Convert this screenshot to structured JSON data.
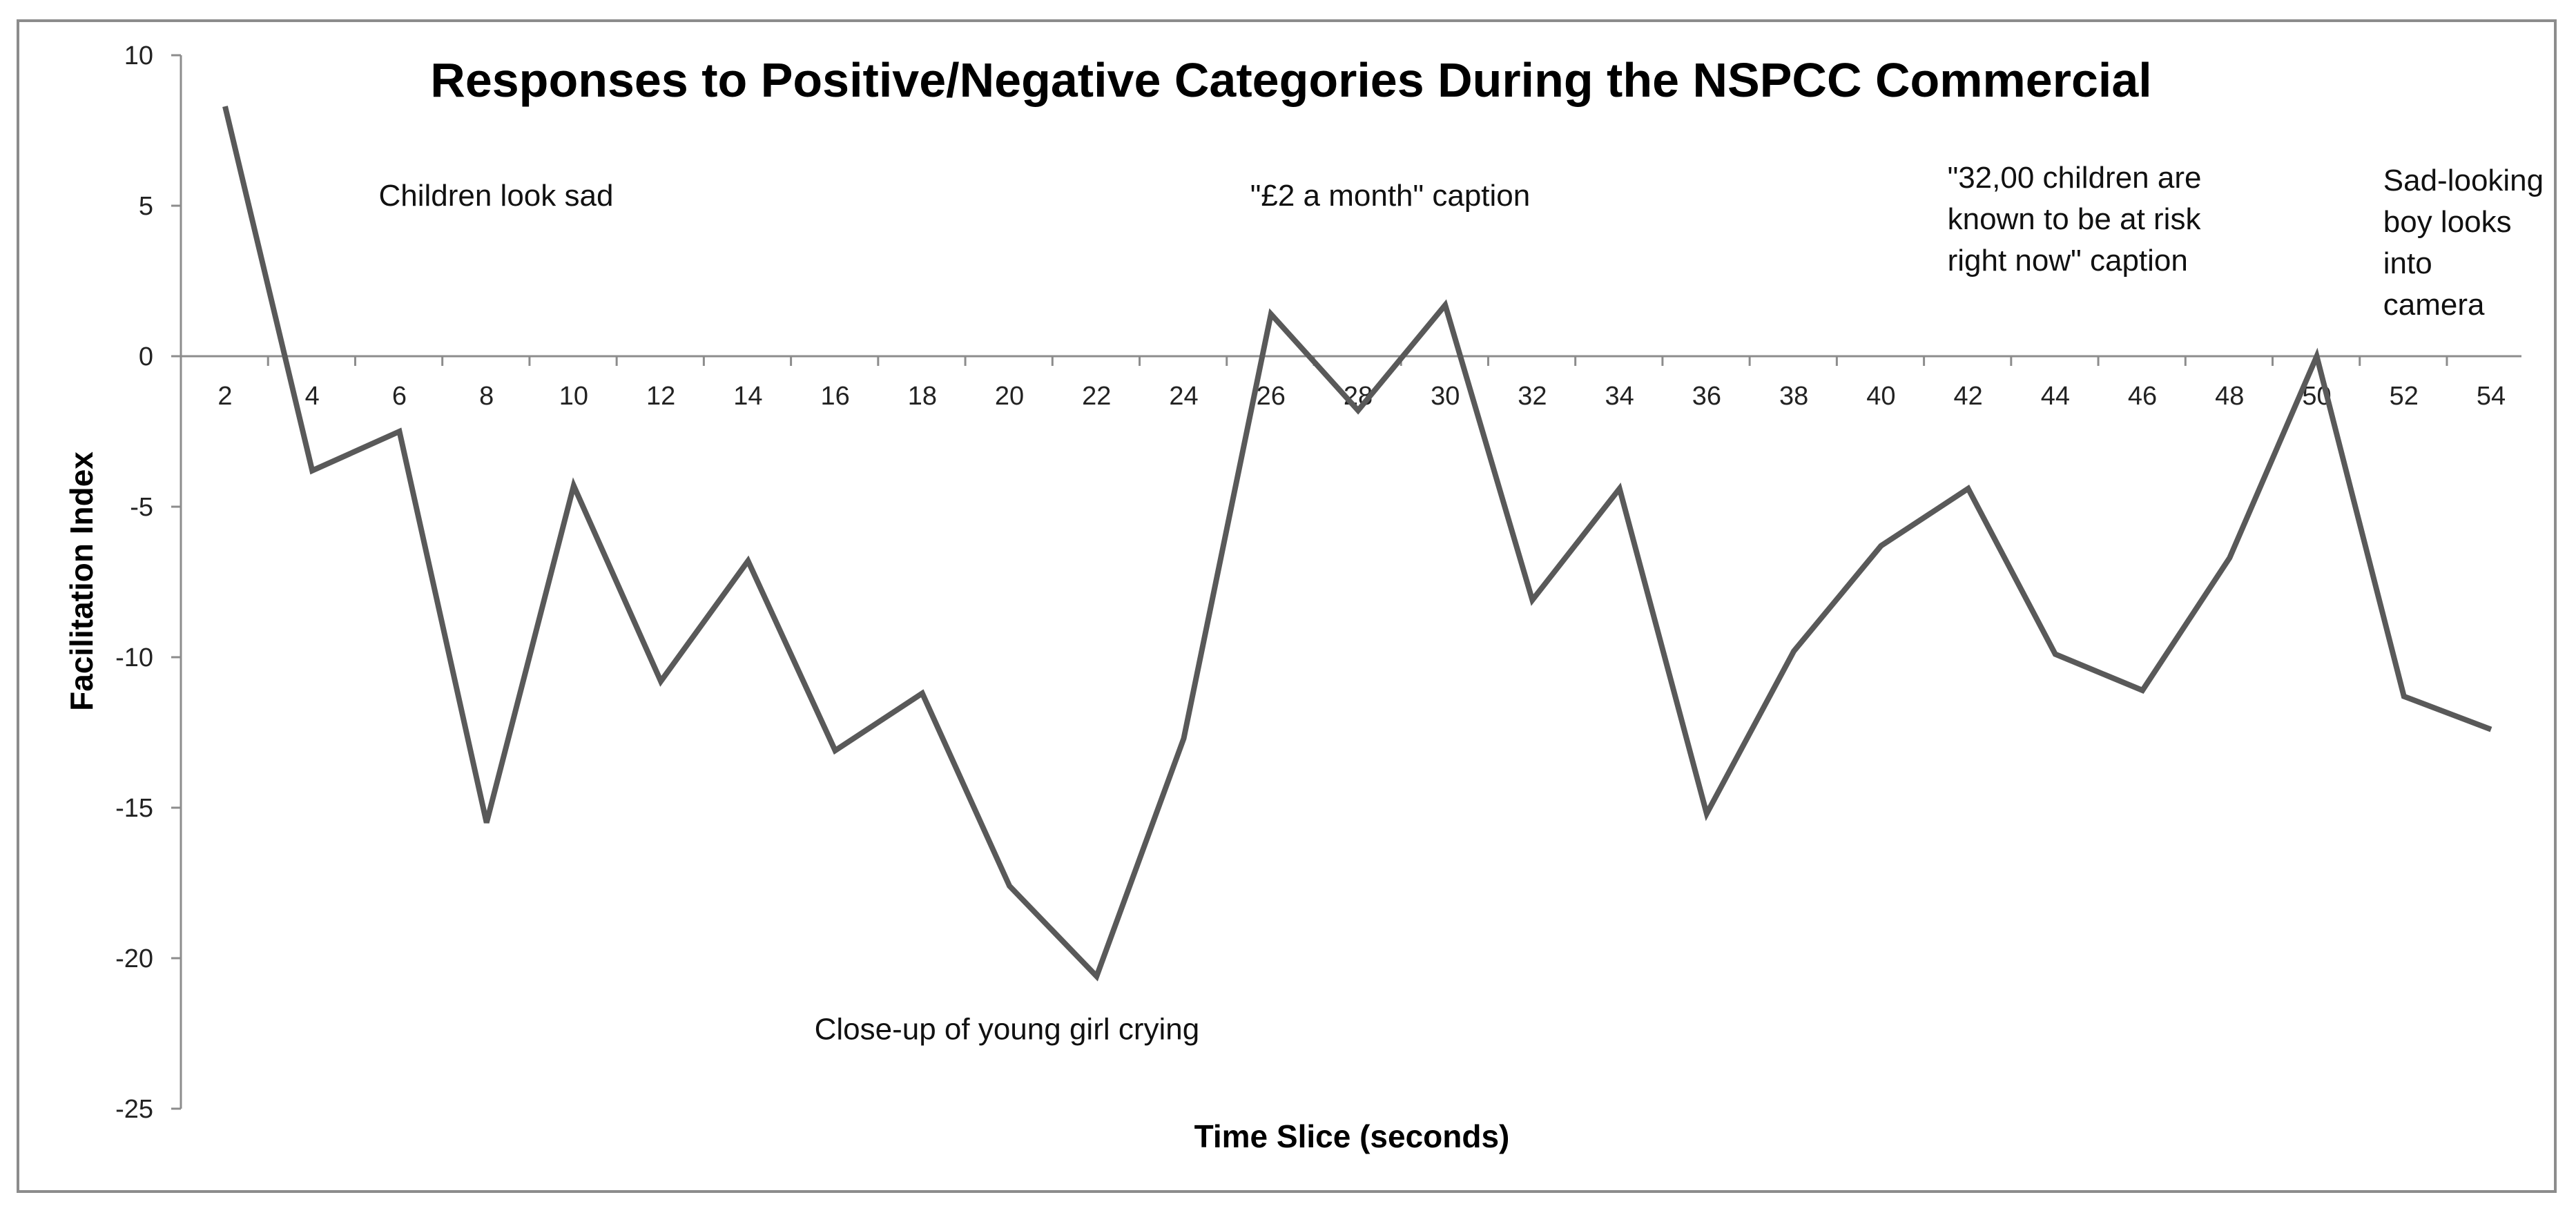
{
  "chart_data": {
    "type": "line",
    "title": "Responses to Positive/Negative Categories During the NSPCC Commercial",
    "xlabel": "Time Slice (seconds)",
    "ylabel": "Facilitation Index",
    "ylim": [
      -25,
      10
    ],
    "yticks": [
      "10",
      "5",
      "0",
      "-5",
      "-10",
      "-15",
      "-20",
      "-25"
    ],
    "ytick_values": [
      10,
      5,
      0,
      -5,
      -10,
      -15,
      -20,
      -25
    ],
    "categories": [
      "2",
      "4",
      "6",
      "8",
      "10",
      "12",
      "14",
      "16",
      "18",
      "20",
      "22",
      "24",
      "26",
      "28",
      "30",
      "32",
      "34",
      "36",
      "38",
      "40",
      "42",
      "44",
      "46",
      "48",
      "50",
      "52",
      "54"
    ],
    "series": [
      {
        "name": "Facilitation Index",
        "color": "#595959",
        "values": [
          8.3,
          -3.8,
          -2.5,
          -15.5,
          -4.3,
          -10.8,
          -6.8,
          -13.1,
          -11.2,
          -17.6,
          -20.6,
          -12.7,
          1.4,
          -1.8,
          1.7,
          -8.1,
          -4.4,
          -15.2,
          -9.8,
          -6.3,
          -4.4,
          -9.9,
          -11.1,
          -6.7,
          0.0,
          -11.3,
          -12.4
        ]
      }
    ],
    "annotations": [
      {
        "lines": [
          "Children look sad"
        ],
        "x_ref": "6",
        "y_ref": 5.0,
        "anchor": "start"
      },
      {
        "lines": [
          "\"£2 a month\" caption"
        ],
        "x_ref": "26",
        "y_ref": 5.0,
        "anchor": "start"
      },
      {
        "lines": [
          "\"32,00 children are",
          "known to be at risk",
          "right now\" caption"
        ],
        "x_ref": "42",
        "y_ref": 5.6,
        "anchor": "start"
      },
      {
        "lines": [
          "Sad-looking",
          "boy looks",
          "into",
          "camera"
        ],
        "x_ref": "52",
        "y_ref": 5.5,
        "anchor": "start"
      },
      {
        "lines": [
          "Close-up of young girl crying"
        ],
        "x_ref": "16",
        "y_ref": -22.7,
        "anchor": "start"
      }
    ],
    "grid": false,
    "legend": "none"
  }
}
